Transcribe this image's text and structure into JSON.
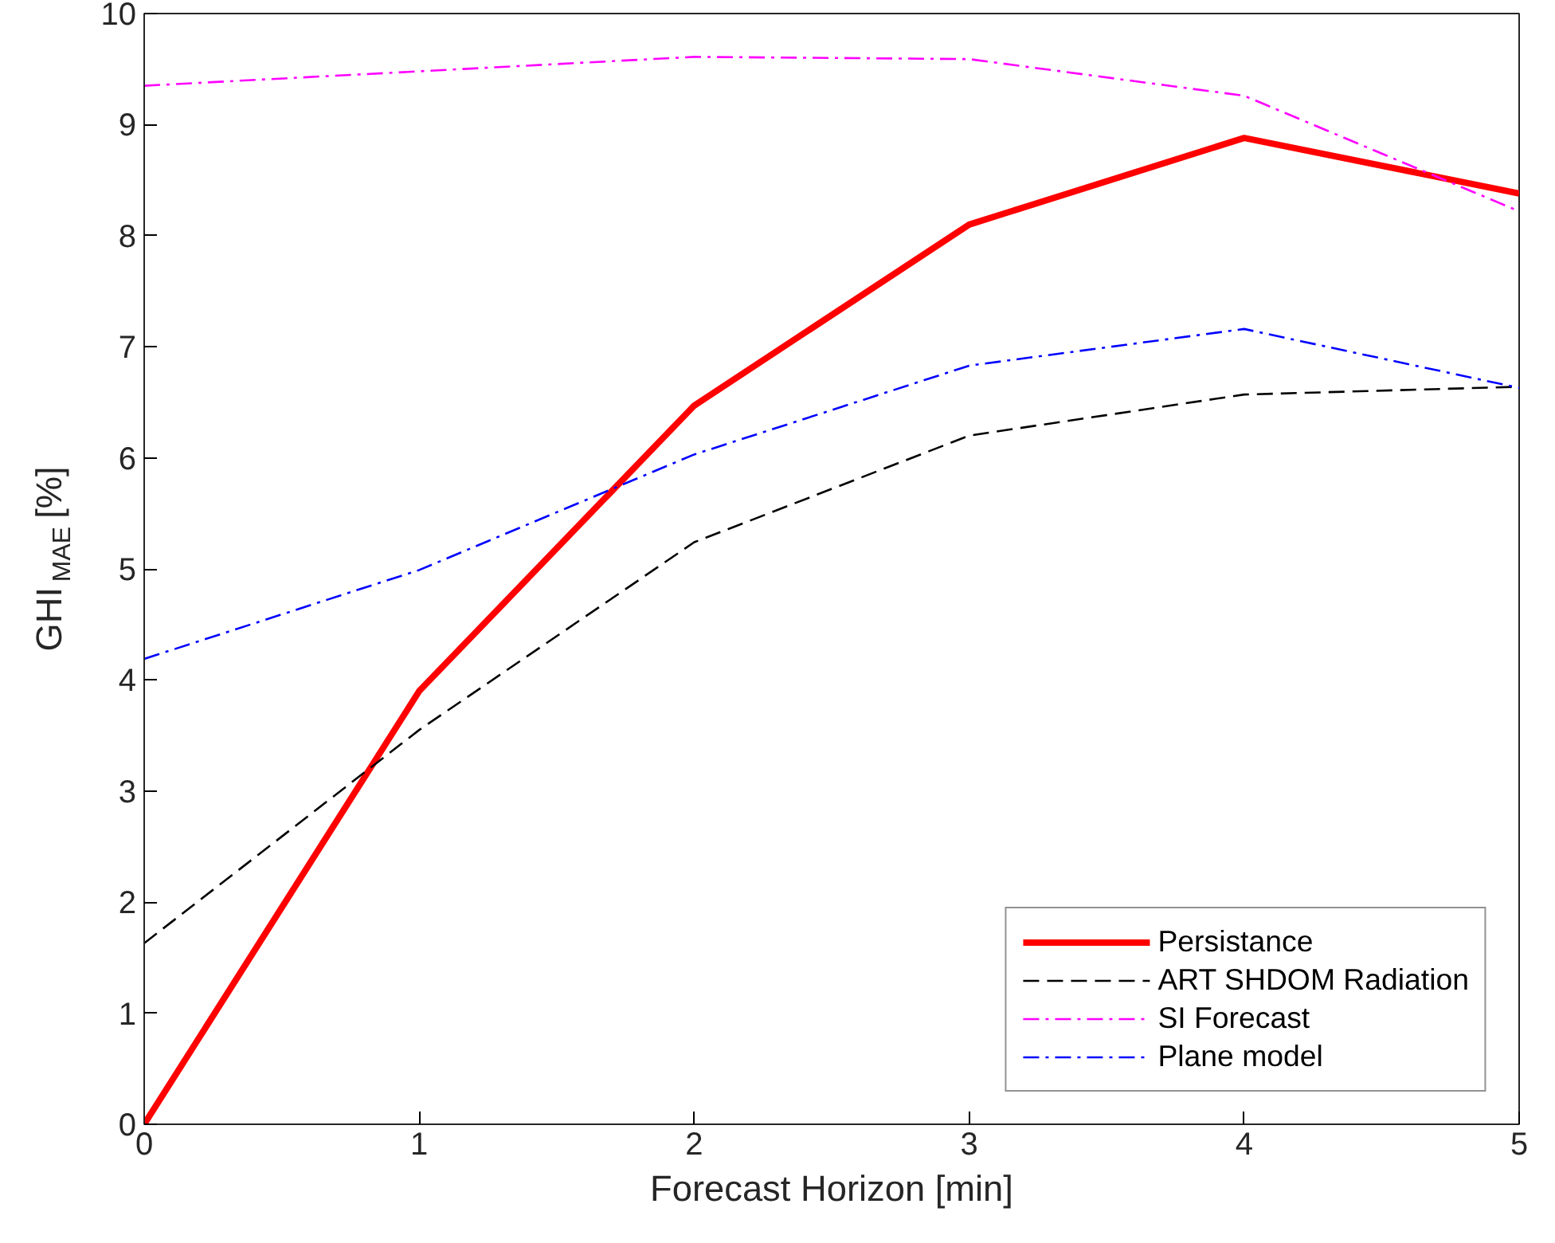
{
  "chart_data": {
    "type": "line",
    "xlabel": "Forecast Horizon [min]",
    "ylabel": "GHI$_{MAE}$ [%]",
    "x": [
      0,
      1,
      2,
      3,
      4,
      5
    ],
    "xlim": [
      0,
      5
    ],
    "xticks": [
      0,
      1,
      2,
      3,
      4,
      5
    ],
    "ylim": [
      0,
      10
    ],
    "yticks": [
      0,
      1,
      2,
      3,
      4,
      5,
      6,
      7,
      8,
      9,
      10
    ],
    "grid": false,
    "legend": "bottom right",
    "marker": "none",
    "series": [
      {
        "name": "Persistance",
        "color": "#ff0000",
        "line_style": "solid",
        "values": [
          0,
          3.9,
          6.47,
          8.1,
          8.88,
          8.38
        ]
      },
      {
        "name": "ART SHDOM Radiation",
        "color": "#000000",
        "line_style": "dashed",
        "values": [
          1.63,
          3.55,
          5.24,
          6.2,
          6.57,
          6.64
        ]
      },
      {
        "name": "SI Forecast",
        "color": "#ff00ff",
        "line_style": "dashdot",
        "values": [
          9.35,
          9.48,
          9.61,
          9.59,
          9.26,
          8.22
        ]
      },
      {
        "name": "Plane model",
        "color": "#0000ff",
        "line_style": "dashdot",
        "values": [
          4.19,
          4.99,
          6.03,
          6.83,
          7.16,
          6.63
        ]
      }
    ]
  }
}
